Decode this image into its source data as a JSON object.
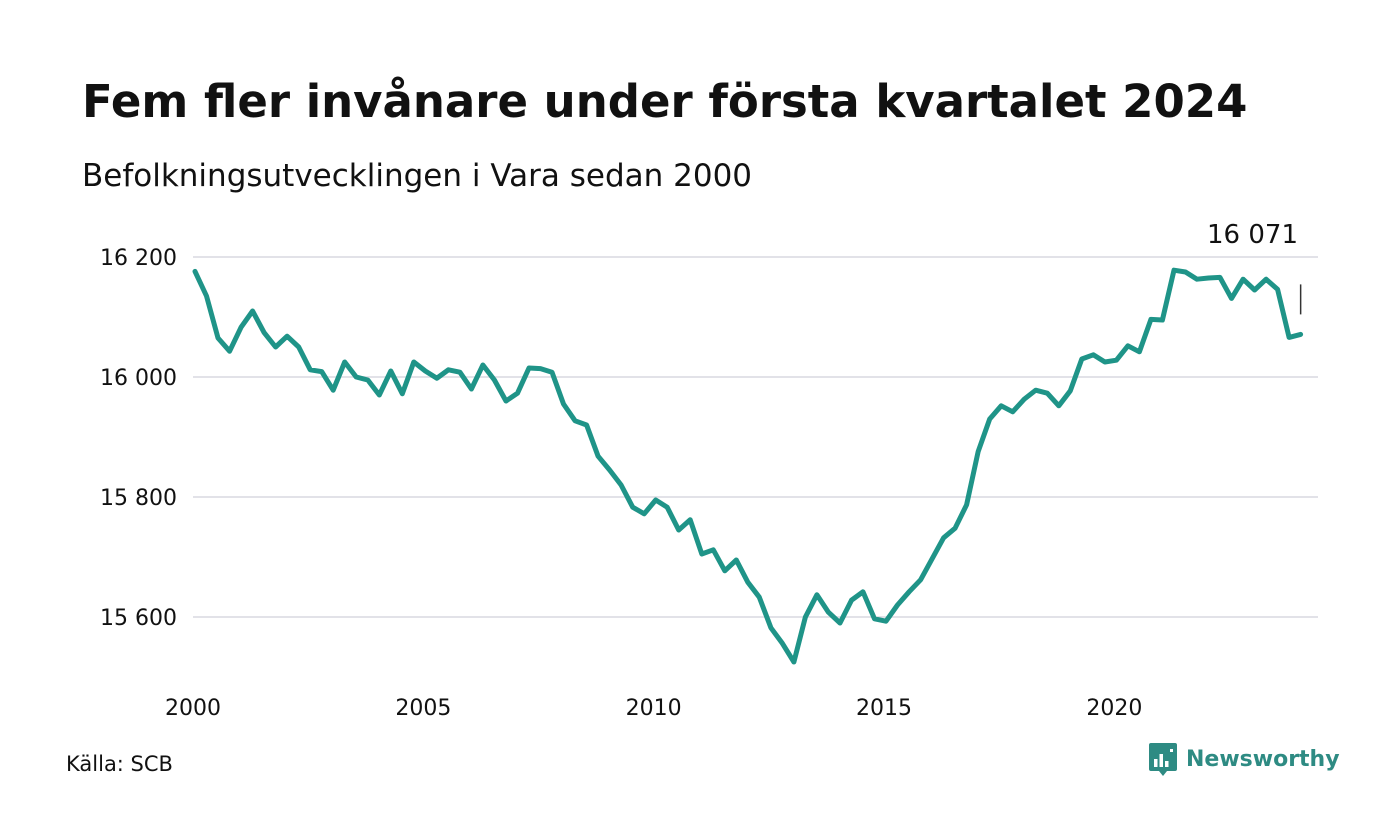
{
  "title": "Fem fler invånare under första kvartalet 2024",
  "subtitle": "Befolkningsutvecklingen i Vara sedan 2000",
  "source": "Källa: SCB",
  "brand": {
    "name": "Newsworthy",
    "color": "#2e8b83",
    "icon": "newsworthy-logo-icon"
  },
  "colors": {
    "line": "#1f9488",
    "grid": "#e2e2e8",
    "text": "#111111"
  },
  "chart_data": {
    "type": "line",
    "title": "Fem fler invånare under första kvartalet 2024",
    "subtitle": "Befolkningsutvecklingen i Vara sedan 2000",
    "xlabel": "",
    "ylabel": "",
    "xlim": [
      2000,
      2024.25
    ],
    "ylim": [
      15500,
      16230
    ],
    "x_ticks": [
      2000,
      2005,
      2010,
      2015,
      2020
    ],
    "x_tick_labels": [
      "2000",
      "2005",
      "2010",
      "2015",
      "2020"
    ],
    "y_ticks": [
      15600,
      15800,
      16000,
      16200
    ],
    "y_tick_labels": [
      "15 600",
      "15 800",
      "16 000",
      "16 200"
    ],
    "grid": true,
    "legend": "none",
    "annotation": {
      "x": 2024.0,
      "value": 16071,
      "label": "16 071"
    },
    "series": [
      {
        "x": [
          2000.0,
          2000.25,
          2000.5,
          2000.75,
          2001.0,
          2001.25,
          2001.5,
          2001.75,
          2002.0,
          2002.25,
          2002.5,
          2002.75,
          2003.0,
          2003.25,
          2003.5,
          2003.75,
          2004.0,
          2004.25,
          2004.5,
          2004.75,
          2005.0,
          2005.25,
          2005.5,
          2005.75,
          2006.0,
          2006.25,
          2006.5,
          2006.75,
          2007.0,
          2007.25,
          2007.5,
          2007.75,
          2008.0,
          2008.25,
          2008.5,
          2008.75,
          2009.0,
          2009.25,
          2009.5,
          2009.75,
          2010.0,
          2010.25,
          2010.5,
          2010.75,
          2011.0,
          2011.25,
          2011.5,
          2011.75,
          2012.0,
          2012.25,
          2012.5,
          2012.75,
          2013.0,
          2013.25,
          2013.5,
          2013.75,
          2014.0,
          2014.25,
          2014.5,
          2014.75,
          2015.0,
          2015.25,
          2015.5,
          2015.75,
          2016.0,
          2016.25,
          2016.5,
          2016.75,
          2017.0,
          2017.25,
          2017.5,
          2017.75,
          2018.0,
          2018.25,
          2018.5,
          2018.75,
          2019.0,
          2019.25,
          2019.5,
          2019.75,
          2020.0,
          2020.25,
          2020.5,
          2020.75,
          2021.0,
          2021.25,
          2021.5,
          2021.75,
          2022.0,
          2022.25,
          2022.5,
          2022.75,
          2023.0,
          2023.25,
          2023.5,
          2023.75,
          2024.0
        ],
        "values": [
          16176,
          16135,
          16065,
          16043,
          16083,
          16110,
          16074,
          16050,
          16068,
          16050,
          16012,
          16009,
          15978,
          16025,
          16000,
          15995,
          15970,
          16010,
          15972,
          16025,
          16010,
          15998,
          16012,
          16008,
          15980,
          16020,
          15995,
          15960,
          15973,
          16015,
          16014,
          16008,
          15955,
          15927,
          15920,
          15868,
          15845,
          15820,
          15783,
          15772,
          15795,
          15783,
          15745,
          15762,
          15705,
          15712,
          15677,
          15695,
          15658,
          15633,
          15582,
          15556,
          15525,
          15600,
          15637,
          15608,
          15590,
          15628,
          15642,
          15597,
          15593,
          15620,
          15642,
          15662,
          15697,
          15732,
          15748,
          15787,
          15876,
          15930,
          15952,
          15942,
          15963,
          15978,
          15973,
          15952,
          15977,
          16030,
          16037,
          16025,
          16028,
          16052,
          16042,
          16096,
          16095,
          16178,
          16175,
          16163,
          16165,
          16166,
          16131,
          16163,
          16145,
          16163,
          16146,
          16066,
          16071
        ]
      }
    ]
  }
}
